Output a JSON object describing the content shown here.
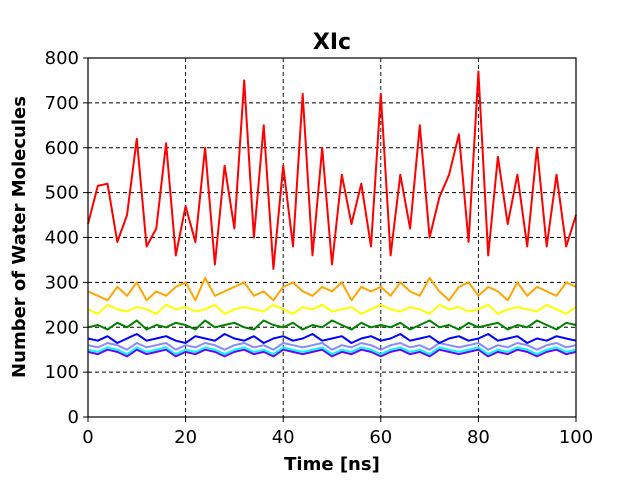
{
  "chart_data": {
    "type": "line",
    "title": "XIc",
    "xlabel": "Time [ns]",
    "ylabel": "Number of Water Molecules",
    "xlim": [
      0,
      100
    ],
    "ylim": [
      0,
      800
    ],
    "x_ticks": [
      0,
      20,
      40,
      60,
      80,
      100
    ],
    "y_ticks": [
      0,
      100,
      200,
      300,
      400,
      500,
      600,
      700,
      800
    ],
    "x_tick_labels": [
      "0",
      "20",
      "40",
      "60",
      "80",
      "100"
    ],
    "y_tick_labels": [
      "0",
      "100",
      "200",
      "300",
      "400",
      "500",
      "600",
      "700",
      "800"
    ],
    "grid": true,
    "x": [
      0,
      2,
      4,
      6,
      8,
      10,
      12,
      14,
      16,
      18,
      20,
      22,
      24,
      26,
      28,
      30,
      32,
      34,
      36,
      38,
      40,
      42,
      44,
      46,
      48,
      50,
      52,
      54,
      56,
      58,
      60,
      62,
      64,
      66,
      68,
      70,
      72,
      74,
      76,
      78,
      80,
      82,
      84,
      86,
      88,
      90,
      92,
      94,
      96,
      98,
      100
    ],
    "series": [
      {
        "name": "red",
        "color": "#ff0000",
        "values": [
          430,
          515,
          520,
          390,
          450,
          620,
          380,
          420,
          610,
          360,
          470,
          390,
          600,
          340,
          560,
          420,
          750,
          400,
          650,
          330,
          560,
          380,
          720,
          360,
          600,
          340,
          540,
          430,
          520,
          380,
          720,
          360,
          540,
          420,
          650,
          400,
          490,
          540,
          630,
          390,
          770,
          360,
          580,
          430,
          540,
          380,
          600,
          380,
          540,
          380,
          450
        ]
      },
      {
        "name": "orange",
        "color": "#ffa500",
        "values": [
          280,
          270,
          260,
          290,
          270,
          300,
          260,
          280,
          270,
          290,
          300,
          260,
          310,
          270,
          280,
          290,
          300,
          270,
          280,
          260,
          290,
          300,
          280,
          270,
          290,
          280,
          300,
          260,
          290,
          280,
          290,
          270,
          300,
          280,
          270,
          310,
          280,
          260,
          290,
          300,
          270,
          290,
          280,
          260,
          300,
          270,
          290,
          280,
          270,
          300,
          290
        ]
      },
      {
        "name": "yellow",
        "color": "#ffff00",
        "values": [
          240,
          230,
          250,
          240,
          235,
          245,
          240,
          230,
          250,
          240,
          245,
          235,
          240,
          250,
          230,
          240,
          245,
          240,
          235,
          250,
          240,
          230,
          245,
          240,
          250,
          235,
          240,
          245,
          230,
          240,
          250,
          240,
          235,
          245,
          240,
          230,
          250,
          240,
          245,
          235,
          240,
          250,
          230,
          240,
          245,
          240,
          235,
          250,
          240,
          230,
          245
        ]
      },
      {
        "name": "green",
        "color": "#008000",
        "values": [
          200,
          205,
          195,
          210,
          200,
          215,
          195,
          205,
          200,
          210,
          205,
          195,
          215,
          200,
          205,
          210,
          200,
          195,
          215,
          205,
          200,
          210,
          195,
          205,
          200,
          215,
          205,
          195,
          210,
          200,
          205,
          200,
          210,
          195,
          205,
          215,
          200,
          205,
          195,
          210,
          200,
          205,
          210,
          195,
          205,
          200,
          215,
          205,
          195,
          210,
          205
        ]
      },
      {
        "name": "blue",
        "color": "#0000ff",
        "values": [
          175,
          170,
          180,
          165,
          175,
          185,
          170,
          175,
          180,
          170,
          165,
          180,
          175,
          170,
          185,
          175,
          170,
          180,
          165,
          175,
          180,
          170,
          175,
          185,
          170,
          175,
          180,
          165,
          175,
          180,
          170,
          175,
          185,
          170,
          175,
          180,
          165,
          175,
          180,
          170,
          175,
          185,
          170,
          175,
          180,
          165,
          175,
          170,
          180,
          175,
          170
        ]
      },
      {
        "name": "lightslateblue",
        "color": "#8a8aff",
        "values": [
          160,
          155,
          165,
          160,
          150,
          165,
          155,
          160,
          165,
          150,
          160,
          155,
          165,
          160,
          150,
          160,
          165,
          155,
          160,
          150,
          165,
          160,
          155,
          160,
          165,
          150,
          160,
          155,
          165,
          160,
          150,
          160,
          165,
          155,
          160,
          150,
          165,
          160,
          155,
          160,
          165,
          150,
          160,
          155,
          165,
          160,
          150,
          160,
          165,
          155,
          160
        ]
      },
      {
        "name": "cyan",
        "color": "#00ffff",
        "values": [
          150,
          145,
          155,
          150,
          140,
          155,
          145,
          150,
          155,
          140,
          150,
          145,
          155,
          150,
          140,
          150,
          155,
          145,
          150,
          140,
          155,
          150,
          145,
          150,
          155,
          140,
          150,
          145,
          155,
          150,
          140,
          150,
          155,
          145,
          150,
          140,
          155,
          150,
          145,
          150,
          155,
          140,
          150,
          145,
          155,
          150,
          140,
          150,
          155,
          145,
          150
        ]
      },
      {
        "name": "violet",
        "color": "#6a00ff",
        "values": [
          145,
          140,
          150,
          145,
          135,
          150,
          140,
          145,
          150,
          135,
          145,
          140,
          150,
          145,
          135,
          145,
          150,
          140,
          145,
          135,
          150,
          145,
          140,
          145,
          150,
          135,
          145,
          140,
          150,
          145,
          135,
          145,
          150,
          140,
          145,
          135,
          150,
          145,
          140,
          145,
          150,
          135,
          145,
          140,
          150,
          145,
          135,
          145,
          150,
          140,
          145
        ]
      }
    ]
  }
}
